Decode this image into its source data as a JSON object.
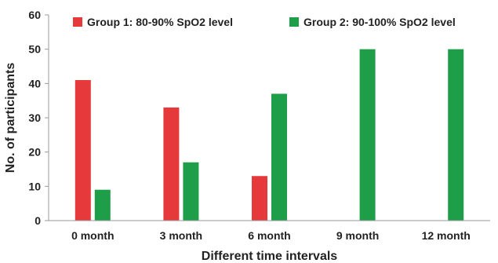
{
  "chart_data": {
    "type": "bar",
    "categories": [
      "0 month",
      "3 month",
      "6 month",
      "9 month",
      "12 month"
    ],
    "series": [
      {
        "name": "Group 1: 80-90% SpO2 level",
        "color": "#e5393b",
        "values": [
          41,
          33,
          13,
          0,
          0
        ]
      },
      {
        "name": "Group 2: 90-100% SpO2 level",
        "color": "#1f9e49",
        "values": [
          9,
          17,
          37,
          50,
          50
        ]
      }
    ],
    "title": "",
    "xlabel": "Different time intervals",
    "ylabel": "No. of participants",
    "ylim": [
      0,
      60
    ],
    "yticks": [
      0,
      10,
      20,
      30,
      40,
      50,
      60
    ],
    "grid": false,
    "legend_position": "top"
  }
}
